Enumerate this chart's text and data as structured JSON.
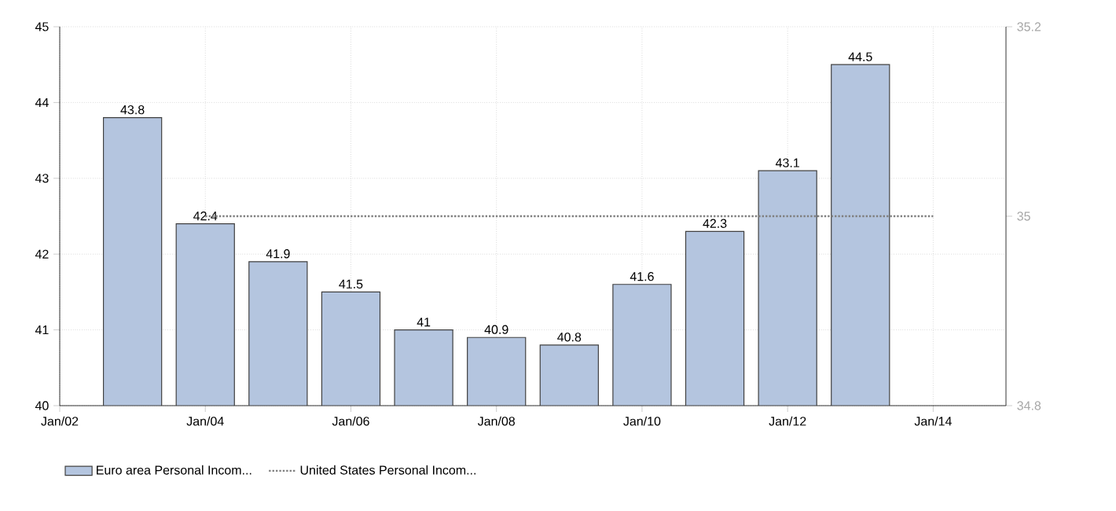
{
  "chart_data": {
    "type": "bar",
    "x": [
      "2003",
      "2004",
      "2005",
      "2006",
      "2007",
      "2008",
      "2009",
      "2010",
      "2011",
      "2012",
      "2013"
    ],
    "series": [
      {
        "name": "Euro area Personal Incom...",
        "color": "#b4c5df",
        "values": [
          43.8,
          42.4,
          41.9,
          41.5,
          41,
          40.9,
          40.8,
          41.6,
          42.3,
          43.1,
          44.5
        ],
        "value_labels": [
          "43.8",
          "42.4",
          "41.9",
          "41.5",
          "41",
          "40.9",
          "40.8",
          "41.6",
          "42.3",
          "43.1",
          "44.5"
        ]
      },
      {
        "name": "United States Personal Incom...",
        "type": "line",
        "axis": "y2",
        "color": "#808080",
        "line_style": "dotted",
        "marker": "none",
        "x": [
          "2004",
          "2005",
          "2006",
          "2007",
          "2008",
          "2009",
          "2010",
          "2011",
          "2012",
          "2013",
          "2014"
        ],
        "values": [
          35,
          35,
          35,
          35,
          35,
          35,
          35,
          35,
          35,
          35,
          35
        ]
      }
    ],
    "xlim": [
      "2002-01",
      "2015-01"
    ],
    "xticks": [
      {
        "value": "2002-01",
        "label": "Jan/02"
      },
      {
        "value": "2004-01",
        "label": "Jan/04"
      },
      {
        "value": "2006-01",
        "label": "Jan/06"
      },
      {
        "value": "2008-01",
        "label": "Jan/08"
      },
      {
        "value": "2010-01",
        "label": "Jan/10"
      },
      {
        "value": "2012-01",
        "label": "Jan/12"
      },
      {
        "value": "2014-01",
        "label": "Jan/14"
      }
    ],
    "ylim": [
      40,
      45
    ],
    "yticks": [
      40,
      41,
      42,
      43,
      44,
      45
    ],
    "y2lim": [
      34.8,
      35.2
    ],
    "y2ticks": [
      34.8,
      35,
      35.2
    ],
    "grid": true,
    "legend": "bottom left"
  }
}
